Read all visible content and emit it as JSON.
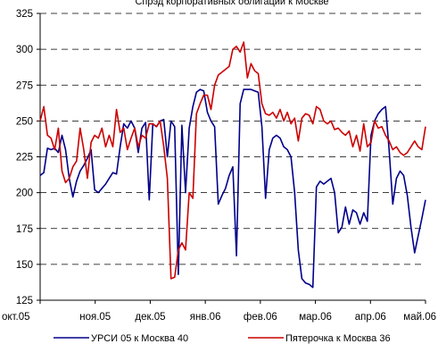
{
  "chart_data": {
    "type": "line",
    "title": "Спрэд корпоративных облигаций к Москве",
    "xlabel": "",
    "ylabel": "",
    "ylim": [
      125,
      325
    ],
    "yticks": [
      125,
      150,
      175,
      200,
      225,
      250,
      275,
      300,
      325
    ],
    "xlim": [
      "2005-10-01",
      "2006-05-01"
    ],
    "xticks": [
      "окт.05",
      "ноя.05",
      "дек.05",
      "янв.06",
      "фев.06",
      "мар.06",
      "апр.06",
      "май.06"
    ],
    "grid": true,
    "legend": "bottom",
    "series": [
      {
        "name": "УРСИ 05 к Москва 40",
        "color": "#00008b",
        "x": [
          "2005-10-01",
          "2005-10-03",
          "2005-10-05",
          "2005-10-07",
          "2005-10-09",
          "2005-10-11",
          "2005-10-13",
          "2005-10-15",
          "2005-10-17",
          "2005-10-19",
          "2005-10-21",
          "2005-10-23",
          "2005-10-25",
          "2005-10-27",
          "2005-10-29",
          "2005-10-31",
          "2005-11-02",
          "2005-11-04",
          "2005-11-06",
          "2005-11-08",
          "2005-11-10",
          "2005-11-12",
          "2005-11-14",
          "2005-11-16",
          "2005-11-18",
          "2005-11-20",
          "2005-11-22",
          "2005-11-24",
          "2005-11-26",
          "2005-11-28",
          "2005-11-30",
          "2005-12-02",
          "2005-12-04",
          "2005-12-06",
          "2005-12-08",
          "2005-12-10",
          "2005-12-12",
          "2005-12-14",
          "2005-12-16",
          "2005-12-18",
          "2005-12-20",
          "2005-12-22",
          "2005-12-24",
          "2005-12-26",
          "2005-12-28",
          "2005-12-30",
          "2006-01-01",
          "2006-01-03",
          "2006-01-05",
          "2006-01-07",
          "2006-01-09",
          "2006-01-11",
          "2006-01-13",
          "2006-01-15",
          "2006-01-17",
          "2006-01-19",
          "2006-01-21",
          "2006-01-23",
          "2006-01-25",
          "2006-01-27",
          "2006-01-29",
          "2006-01-31",
          "2006-02-02",
          "2006-02-04",
          "2006-02-06",
          "2006-02-08",
          "2006-02-10",
          "2006-02-12",
          "2006-02-14",
          "2006-02-16",
          "2006-02-18",
          "2006-02-20",
          "2006-02-22",
          "2006-02-24",
          "2006-02-26",
          "2006-02-28",
          "2006-03-02",
          "2006-03-04",
          "2006-03-06",
          "2006-03-08",
          "2006-03-10",
          "2006-03-12",
          "2006-03-14",
          "2006-03-16",
          "2006-03-18",
          "2006-03-20",
          "2006-03-22",
          "2006-03-24",
          "2006-03-26",
          "2006-03-28",
          "2006-03-30",
          "2006-04-01",
          "2006-04-03",
          "2006-04-05",
          "2006-04-07",
          "2006-04-09",
          "2006-04-11",
          "2006-04-13",
          "2006-04-15",
          "2006-04-17",
          "2006-04-19",
          "2006-04-21",
          "2006-04-23",
          "2006-04-25",
          "2006-04-27",
          "2006-04-29",
          "2006-05-01"
        ],
        "values": [
          212,
          214,
          231,
          230,
          231,
          228,
          240,
          230,
          210,
          197,
          208,
          215,
          219,
          224,
          230,
          202,
          200,
          203,
          206,
          210,
          214,
          213,
          232,
          248,
          245,
          250,
          245,
          228,
          245,
          249,
          195,
          248,
          246,
          250,
          251,
          225,
          250,
          246,
          143,
          247,
          200,
          245,
          260,
          270,
          272,
          271,
          256,
          250,
          246,
          192,
          198,
          203,
          212,
          218,
          156,
          262,
          272,
          272,
          272,
          271,
          270,
          246,
          196,
          230,
          238,
          240,
          238,
          232,
          230,
          225,
          200,
          160,
          140,
          137,
          136,
          134,
          204,
          208,
          206,
          208,
          210,
          200,
          172,
          176,
          190,
          178,
          188,
          186,
          178,
          186,
          180,
          240,
          250,
          255,
          258,
          260,
          230,
          192,
          210,
          215,
          212,
          198,
          176,
          158,
          170,
          182,
          195
        ]
      },
      {
        "name": "Пятерочка к Москва 36",
        "color": "#cc0000",
        "x": [
          "2005-10-01",
          "2005-10-03",
          "2005-10-05",
          "2005-10-07",
          "2005-10-09",
          "2005-10-11",
          "2005-10-13",
          "2005-10-15",
          "2005-10-17",
          "2005-10-19",
          "2005-10-21",
          "2005-10-23",
          "2005-10-25",
          "2005-10-27",
          "2005-10-29",
          "2005-10-31",
          "2005-11-02",
          "2005-11-04",
          "2005-11-06",
          "2005-11-08",
          "2005-11-10",
          "2005-11-12",
          "2005-11-14",
          "2005-11-16",
          "2005-11-18",
          "2005-11-20",
          "2005-11-22",
          "2005-11-24",
          "2005-11-26",
          "2005-11-28",
          "2005-11-30",
          "2005-12-02",
          "2005-12-04",
          "2005-12-06",
          "2005-12-08",
          "2005-12-10",
          "2005-12-12",
          "2005-12-14",
          "2005-12-16",
          "2005-12-18",
          "2005-12-20",
          "2005-12-22",
          "2005-12-24",
          "2005-12-26",
          "2005-12-28",
          "2005-12-30",
          "2006-01-01",
          "2006-01-03",
          "2006-01-05",
          "2006-01-07",
          "2006-01-09",
          "2006-01-11",
          "2006-01-13",
          "2006-01-15",
          "2006-01-17",
          "2006-01-19",
          "2006-01-21",
          "2006-01-23",
          "2006-01-25",
          "2006-01-27",
          "2006-01-29",
          "2006-01-31",
          "2006-02-02",
          "2006-02-04",
          "2006-02-06",
          "2006-02-08",
          "2006-02-10",
          "2006-02-12",
          "2006-02-14",
          "2006-02-16",
          "2006-02-18",
          "2006-02-20",
          "2006-02-22",
          "2006-02-24",
          "2006-02-26",
          "2006-02-28",
          "2006-03-02",
          "2006-03-04",
          "2006-03-06",
          "2006-03-08",
          "2006-03-10",
          "2006-03-12",
          "2006-03-14",
          "2006-03-16",
          "2006-03-18",
          "2006-03-20",
          "2006-03-22",
          "2006-03-24",
          "2006-03-26",
          "2006-03-28",
          "2006-03-30",
          "2006-04-01",
          "2006-04-03",
          "2006-04-05",
          "2006-04-07",
          "2006-04-09",
          "2006-04-11",
          "2006-04-13",
          "2006-04-15",
          "2006-04-17",
          "2006-04-19",
          "2006-04-21",
          "2006-04-23",
          "2006-04-25",
          "2006-04-27",
          "2006-04-29",
          "2006-05-01"
        ],
        "values": [
          250,
          260,
          240,
          238,
          230,
          245,
          215,
          207,
          210,
          218,
          222,
          245,
          230,
          210,
          235,
          240,
          238,
          245,
          232,
          240,
          232,
          258,
          242,
          245,
          230,
          238,
          245,
          232,
          240,
          238,
          248,
          248,
          246,
          250,
          232,
          210,
          140,
          141,
          160,
          165,
          160,
          200,
          196,
          255,
          262,
          268,
          268,
          258,
          275,
          282,
          284,
          286,
          288,
          300,
          302,
          298,
          305,
          280,
          290,
          285,
          283,
          262,
          255,
          254,
          256,
          252,
          258,
          250,
          256,
          248,
          252,
          236,
          252,
          255,
          254,
          248,
          260,
          258,
          250,
          248,
          250,
          244,
          245,
          242,
          240,
          243,
          232,
          240,
          229,
          248,
          232,
          235,
          250,
          245,
          246,
          240,
          236,
          230,
          232,
          228,
          226,
          228,
          232,
          236,
          232,
          230,
          246
        ]
      }
    ]
  }
}
